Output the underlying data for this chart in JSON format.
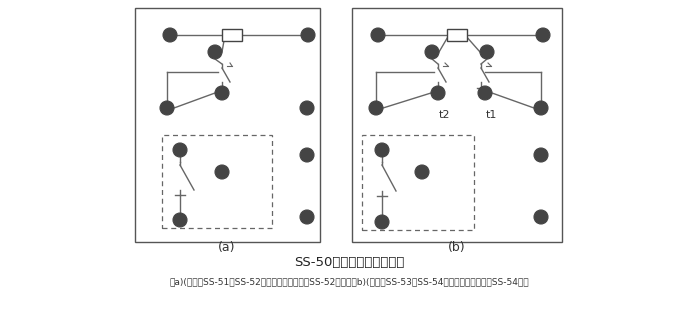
{
  "title": "SS-50系列背后端子接線圖",
  "caption": "（a)(背視）SS-51、SS-52型，圖中虛線部分僅SS-52型有；（b)(背視）SS-53、SS-54型，圖中虛線部分僅SS-54型有",
  "label_a": "(a)",
  "label_b": "(b)",
  "bg_color": "#ffffff",
  "line_color": "#666666",
  "box_color": "#444444",
  "circle_color": "#444444"
}
